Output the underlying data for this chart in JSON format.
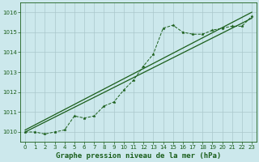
{
  "title": "Graphe pression niveau de la mer (hPa)",
  "background_color": "#cce8ec",
  "grid_color": "#aac8cc",
  "line_color": "#1a5e1a",
  "xlim": [
    -0.5,
    23.5
  ],
  "ylim": [
    1009.5,
    1016.5
  ],
  "xticks": [
    0,
    1,
    2,
    3,
    4,
    5,
    6,
    7,
    8,
    9,
    10,
    11,
    12,
    13,
    14,
    15,
    16,
    17,
    18,
    19,
    20,
    21,
    22,
    23
  ],
  "yticks": [
    1010,
    1011,
    1012,
    1013,
    1014,
    1015,
    1016
  ],
  "series1_x": [
    0,
    1,
    2,
    3,
    4,
    5,
    6,
    7,
    8,
    9,
    10,
    11,
    12,
    13,
    14,
    15,
    16,
    17,
    18,
    19,
    20,
    21,
    22,
    23
  ],
  "series1_y": [
    1010.0,
    1010.0,
    1009.9,
    1010.0,
    1010.1,
    1010.8,
    1010.7,
    1010.8,
    1011.3,
    1011.5,
    1012.1,
    1012.6,
    1013.3,
    1013.9,
    1015.2,
    1015.35,
    1015.0,
    1014.9,
    1014.9,
    1015.1,
    1015.2,
    1015.3,
    1015.3,
    1015.8
  ],
  "line2_x": [
    0,
    23
  ],
  "line2_y": [
    1010.0,
    1015.7
  ],
  "line3_x": [
    0,
    23
  ],
  "line3_y": [
    1010.1,
    1016.0
  ],
  "ylabel_fontsize": 6,
  "xlabel_fontsize": 6.5,
  "tick_fontsize": 5
}
